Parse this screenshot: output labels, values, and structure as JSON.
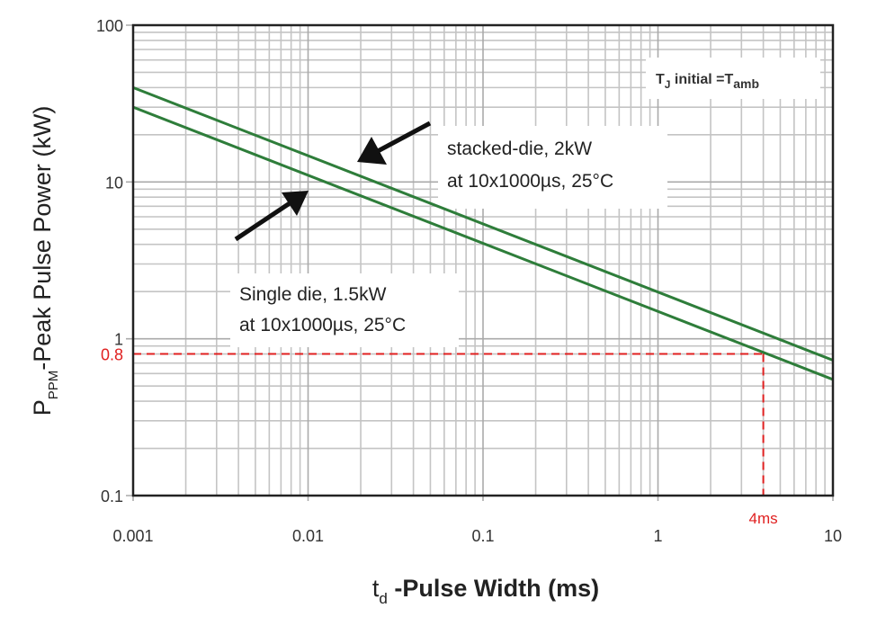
{
  "chart_data": {
    "type": "line",
    "title": "",
    "xlabel": {
      "main": "t",
      "sub": "d",
      "rest": " -Pulse Width (ms)"
    },
    "ylabel": {
      "main": "P",
      "sub": "PPM",
      "rest": "-Peak Pulse Power (kW)"
    },
    "x_scale": "log",
    "y_scale": "log",
    "xlim": [
      0.001,
      10
    ],
    "ylim": [
      0.1,
      100
    ],
    "x_ticks": [
      {
        "value": 0.001,
        "label": "0.001"
      },
      {
        "value": 0.01,
        "label": "0.01"
      },
      {
        "value": 0.1,
        "label": "0.1"
      },
      {
        "value": 1,
        "label": "1"
      },
      {
        "value": 10,
        "label": "10"
      }
    ],
    "y_ticks": [
      {
        "value": 100,
        "label": "100"
      },
      {
        "value": 10,
        "label": "10"
      },
      {
        "value": 1,
        "label": "1"
      },
      {
        "value": 0.1,
        "label": "0.1"
      }
    ],
    "grid": true,
    "series": [
      {
        "x": [
          0.001,
          10
        ],
        "y": [
          40,
          0.73
        ],
        "color": "#2e7d3a"
      },
      {
        "x": [
          0.001,
          10
        ],
        "y": [
          30,
          0.55
        ],
        "color": "#2e7d3a"
      }
    ],
    "reference": {
      "x": 4,
      "y": 0.8,
      "x_label": "4ms",
      "y_label": "0.8",
      "color": "#e02020"
    },
    "annotations": {
      "stacked": [
        "stacked-die, 2kW",
        "at 10x1000µs, 25°C"
      ],
      "single": [
        "Single die, 1.5kW",
        "at 10x1000µs, 25°C"
      ],
      "condition": {
        "t": "T",
        "t_sub": "J",
        "mid": " initial =",
        "t2": "T",
        "t2_sub": "amb"
      }
    }
  }
}
